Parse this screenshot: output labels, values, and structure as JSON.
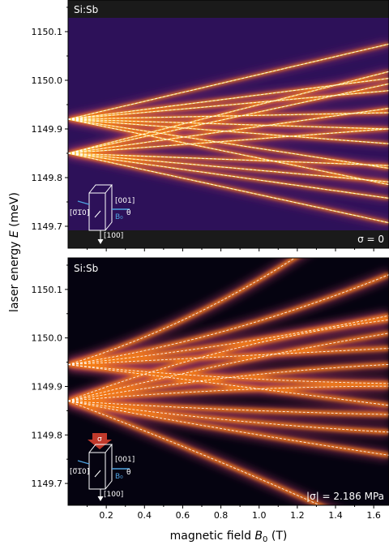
{
  "figure": {
    "ylabel_prefix": "laser energy ",
    "ylabel_symbol": "E",
    "ylabel_unit": " (meV)",
    "xlabel_prefix": "magnetic field ",
    "xlabel_symbol": "B",
    "xlabel_sub": "0",
    "xlabel_unit": " (T)"
  },
  "chart_data": [
    {
      "type": "heatmap",
      "panel": "top",
      "title": "Si:Sb",
      "annotation": "σ = 0",
      "inset": {
        "axis1": "[001]",
        "axis2": "[0̅1̅0]",
        "axis3": "[100]",
        "field": "B₀",
        "angle": "θ"
      },
      "xlim": [
        0.0,
        1.68
      ],
      "ylim": [
        1149.655,
        1150.165
      ],
      "xticks": [
        0.2,
        0.4,
        0.6,
        0.8,
        1.0,
        1.2,
        1.4,
        1.6
      ],
      "xticklabels": [],
      "yticks": [
        1149.7,
        1149.8,
        1149.9,
        1150.0,
        1150.1
      ],
      "yticklabels": [
        "1149.7",
        "1149.8",
        "1149.9",
        "1150.0",
        "1150.1"
      ],
      "colormap": "inferno",
      "series": [
        {
          "origin": 1149.92,
          "slope": 0.092,
          "curv": 0.0
        },
        {
          "origin": 1149.92,
          "slope": 0.05,
          "curv": 0.0
        },
        {
          "origin": 1149.92,
          "slope": 0.035,
          "curv": 0.0
        },
        {
          "origin": 1149.92,
          "slope": 0.008,
          "curv": 0.0
        },
        {
          "origin": 1149.92,
          "slope": -0.012,
          "curv": 0.0
        },
        {
          "origin": 1149.92,
          "slope": -0.03,
          "curv": 0.0
        },
        {
          "origin": 1149.92,
          "slope": -0.06,
          "curv": 0.0
        },
        {
          "origin": 1149.92,
          "slope": -0.08,
          "curv": 0.0
        },
        {
          "origin": 1149.85,
          "slope": 0.1,
          "curv": 0.0
        },
        {
          "origin": 1149.85,
          "slope": 0.085,
          "curv": 0.0
        },
        {
          "origin": 1149.85,
          "slope": 0.055,
          "curv": 0.0
        },
        {
          "origin": 1149.85,
          "slope": 0.03,
          "curv": 0.0
        },
        {
          "origin": 1149.85,
          "slope": -0.015,
          "curv": 0.0
        },
        {
          "origin": 1149.85,
          "slope": -0.035,
          "curv": 0.0
        },
        {
          "origin": 1149.85,
          "slope": -0.055,
          "curv": 0.0
        },
        {
          "origin": 1149.85,
          "slope": -0.085,
          "curv": 0.0
        }
      ]
    },
    {
      "type": "heatmap",
      "panel": "bottom",
      "title": "Si:Sb",
      "annotation": "|σ| = 2.186 MPa",
      "inset": {
        "axis1": "[001]",
        "axis2": "[0̅1̅0]",
        "axis3": "[100]",
        "field": "B₀",
        "angle": "θ",
        "stress": "σ"
      },
      "xlim": [
        0.0,
        1.68
      ],
      "ylim": [
        1149.655,
        1150.165
      ],
      "xticks": [
        0.2,
        0.4,
        0.6,
        0.8,
        1.0,
        1.2,
        1.4,
        1.6
      ],
      "xticklabels": [
        "0.2",
        "0.4",
        "0.6",
        "0.8",
        "1.0",
        "1.2",
        "1.4",
        "1.6"
      ],
      "yticks": [
        1149.7,
        1149.8,
        1149.9,
        1150.0,
        1150.1
      ],
      "yticklabels": [
        "1149.7",
        "1149.8",
        "1149.9",
        "1150.0",
        "1150.1"
      ],
      "colormap": "inferno",
      "series": [
        {
          "origin": 1149.945,
          "slope": 0.12,
          "curv": 0.055
        },
        {
          "origin": 1149.945,
          "slope": 0.06,
          "curv": 0.03
        },
        {
          "origin": 1149.945,
          "slope": 0.04,
          "curv": 0.012
        },
        {
          "origin": 1149.945,
          "slope": 0.02,
          "curv": 0.0
        },
        {
          "origin": 1149.945,
          "slope": -0.04,
          "curv": 0.01
        },
        {
          "origin": 1149.945,
          "slope": -0.05,
          "curv": 0.0
        },
        {
          "origin": 1149.87,
          "slope": 0.15,
          "curv": -0.03
        },
        {
          "origin": 1149.87,
          "slope": 0.1,
          "curv": -0.01
        },
        {
          "origin": 1149.87,
          "slope": 0.07,
          "curv": -0.015
        },
        {
          "origin": 1149.87,
          "slope": 0.035,
          "curv": -0.01
        },
        {
          "origin": 1149.87,
          "slope": -0.025,
          "curv": 0.005
        },
        {
          "origin": 1149.87,
          "slope": -0.055,
          "curv": 0.01
        },
        {
          "origin": 1149.87,
          "slope": -0.075,
          "curv": 0.005
        },
        {
          "origin": 1149.87,
          "slope": -0.15,
          "curv": -0.01
        }
      ]
    }
  ]
}
